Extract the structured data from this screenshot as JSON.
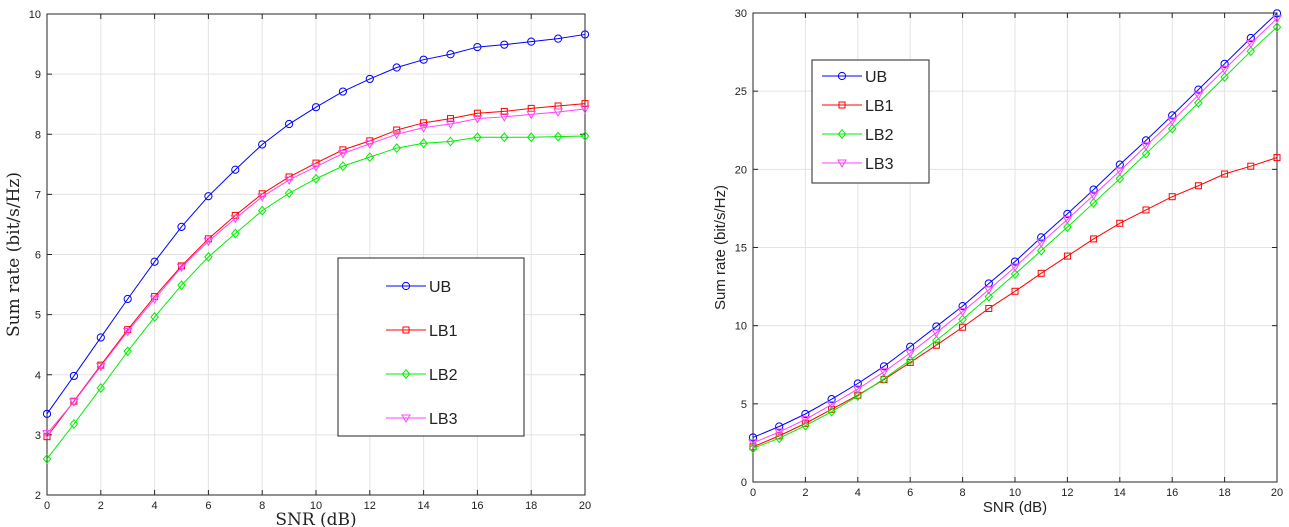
{
  "chart_data": [
    {
      "type": "line",
      "title": "",
      "xlabel": "SNR (dB)",
      "ylabel": "Sum rate (bit/s/Hz)",
      "xlim": [
        0,
        20
      ],
      "ylim": [
        2,
        10
      ],
      "xticks": [
        "0",
        "2",
        "4",
        "6",
        "8",
        "10",
        "12",
        "14",
        "16",
        "18",
        "20"
      ],
      "yticks": [
        "2",
        "3",
        "4",
        "5",
        "6",
        "7",
        "8",
        "9",
        "10"
      ],
      "grid": true,
      "legend_position": "center-right",
      "x": [
        0,
        1,
        2,
        3,
        4,
        5,
        6,
        7,
        8,
        9,
        10,
        11,
        12,
        13,
        14,
        15,
        16,
        17,
        18,
        19,
        20
      ],
      "series": [
        {
          "name": "UB",
          "color": "#0000ff",
          "marker": "circle",
          "values": [
            3.35,
            3.98,
            4.62,
            5.26,
            5.88,
            6.46,
            6.97,
            7.41,
            7.83,
            8.17,
            8.45,
            8.71,
            8.92,
            9.11,
            9.24,
            9.33,
            9.45,
            9.49,
            9.54,
            9.59,
            9.66
          ]
        },
        {
          "name": "LB1",
          "color": "#ff0000",
          "marker": "square",
          "values": [
            2.97,
            3.56,
            4.16,
            4.75,
            5.3,
            5.81,
            6.26,
            6.65,
            7.01,
            7.29,
            7.52,
            7.74,
            7.89,
            8.07,
            8.19,
            8.26,
            8.35,
            8.38,
            8.43,
            8.47,
            8.51
          ]
        },
        {
          "name": "LB2",
          "color": "#00ee00",
          "marker": "diamond",
          "values": [
            2.6,
            3.18,
            3.78,
            4.39,
            4.96,
            5.49,
            5.96,
            6.35,
            6.73,
            7.02,
            7.26,
            7.47,
            7.62,
            7.77,
            7.85,
            7.88,
            7.95,
            7.95,
            7.95,
            7.96,
            7.97
          ]
        },
        {
          "name": "LB3",
          "color": "#ff44ff",
          "marker": "triangle-down",
          "values": [
            3.02,
            3.55,
            4.14,
            4.72,
            5.26,
            5.79,
            6.22,
            6.6,
            6.96,
            7.24,
            7.46,
            7.68,
            7.84,
            8.0,
            8.11,
            8.17,
            8.26,
            8.29,
            8.33,
            8.37,
            8.42
          ]
        }
      ]
    },
    {
      "type": "line",
      "title": "",
      "xlabel": "SNR (dB)",
      "ylabel": "Sum rate (bit/s/Hz)",
      "xlim": [
        0,
        20
      ],
      "ylim": [
        0,
        30
      ],
      "xticks": [
        "0",
        "2",
        "4",
        "6",
        "8",
        "10",
        "12",
        "14",
        "16",
        "18",
        "20"
      ],
      "yticks": [
        "0",
        "5",
        "10",
        "15",
        "20",
        "25",
        "30"
      ],
      "grid": true,
      "legend_position": "top-left",
      "x": [
        0,
        1,
        2,
        3,
        4,
        5,
        6,
        7,
        8,
        9,
        10,
        11,
        12,
        13,
        14,
        15,
        16,
        17,
        18,
        19,
        20
      ],
      "series": [
        {
          "name": "UB",
          "color": "#0000ff",
          "marker": "circle",
          "values": [
            2.85,
            3.55,
            4.35,
            5.3,
            6.3,
            7.4,
            8.65,
            9.95,
            11.25,
            12.7,
            14.1,
            15.65,
            17.15,
            18.7,
            20.3,
            21.85,
            23.45,
            25.1,
            26.75,
            28.4,
            29.98
          ]
        },
        {
          "name": "LB1",
          "color": "#ff0000",
          "marker": "square",
          "values": [
            2.25,
            2.95,
            3.75,
            4.65,
            5.55,
            6.55,
            7.65,
            8.75,
            9.9,
            11.1,
            12.2,
            13.35,
            14.45,
            15.55,
            16.55,
            17.4,
            18.25,
            18.95,
            19.7,
            20.2,
            20.75
          ]
        },
        {
          "name": "LB2",
          "color": "#00ee00",
          "marker": "diamond",
          "values": [
            2.15,
            2.8,
            3.6,
            4.5,
            5.5,
            6.6,
            7.8,
            9.05,
            10.4,
            11.85,
            13.3,
            14.8,
            16.3,
            17.85,
            19.4,
            21.0,
            22.6,
            24.25,
            25.9,
            27.55,
            29.1
          ]
        },
        {
          "name": "LB3",
          "color": "#ff44ff",
          "marker": "triangle-down",
          "values": [
            2.5,
            3.2,
            4.0,
            4.95,
            5.95,
            7.05,
            8.25,
            9.55,
            10.9,
            12.3,
            13.75,
            15.3,
            16.8,
            18.35,
            19.9,
            21.5,
            23.1,
            24.75,
            26.4,
            28.05,
            29.65
          ]
        }
      ]
    }
  ]
}
